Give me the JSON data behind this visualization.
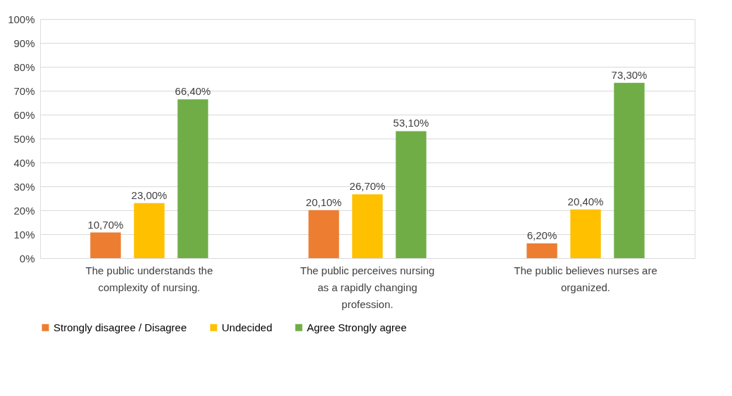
{
  "chart_data": {
    "type": "bar",
    "categories": [
      "The public understands the complexity of nursing.",
      "The public perceives nursing as a rapidly changing profession.",
      "The public believes nurses are organized."
    ],
    "series": [
      {
        "name": "Strongly disagree / Disagree",
        "color": "#ed7d31",
        "values": [
          10.7,
          20.1,
          6.2
        ],
        "value_labels": [
          "10,70%",
          "20,10%",
          "6,20%"
        ]
      },
      {
        "name": "Undecided",
        "color": "#ffc000",
        "values": [
          23.0,
          26.7,
          20.4
        ],
        "value_labels": [
          "23,00%",
          "26,70%",
          "20,40%"
        ]
      },
      {
        "name": "Agree Strongly agree",
        "color": "#70ad47",
        "values": [
          66.4,
          53.1,
          73.3
        ],
        "value_labels": [
          "66,40%",
          "53,10%",
          "73,30%"
        ]
      }
    ],
    "ylim": [
      0,
      100
    ],
    "yticks": [
      {
        "value": 0,
        "label": "0%"
      },
      {
        "value": 10,
        "label": "10%"
      },
      {
        "value": 20,
        "label": "20%"
      },
      {
        "value": 30,
        "label": "30%"
      },
      {
        "value": 40,
        "label": "40%"
      },
      {
        "value": 50,
        "label": "50%"
      },
      {
        "value": 60,
        "label": "60%"
      },
      {
        "value": 70,
        "label": "70%"
      },
      {
        "value": 80,
        "label": "80%"
      },
      {
        "value": 90,
        "label": "90%"
      },
      {
        "value": 100,
        "label": "100%"
      }
    ],
    "grid": "y",
    "legend": "bottom"
  }
}
